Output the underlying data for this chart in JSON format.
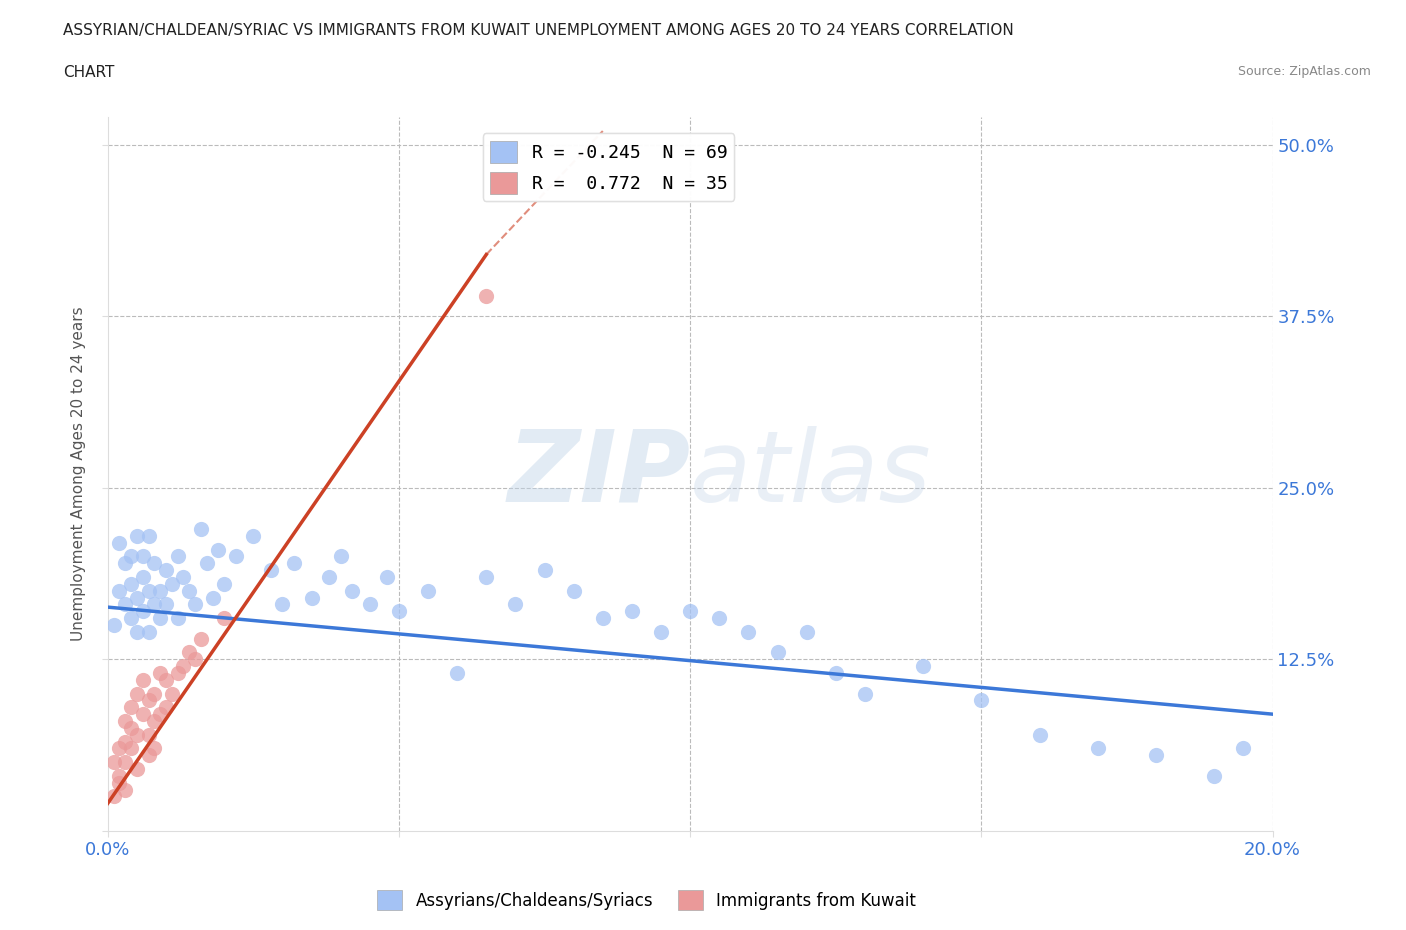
{
  "title_line1": "ASSYRIAN/CHALDEAN/SYRIAC VS IMMIGRANTS FROM KUWAIT UNEMPLOYMENT AMONG AGES 20 TO 24 YEARS CORRELATION",
  "title_line2": "CHART",
  "source": "Source: ZipAtlas.com",
  "ylabel": "Unemployment Among Ages 20 to 24 years",
  "xlim": [
    0.0,
    0.2
  ],
  "ylim": [
    0.0,
    0.52
  ],
  "blue_color": "#a4c2f4",
  "pink_color": "#ea9999",
  "blue_line_color": "#3c78d8",
  "pink_line_color": "#cc4125",
  "legend_blue_label": "R = -0.245  N = 69",
  "legend_pink_label": "R =  0.772  N = 35",
  "legend_bottom_blue": "Assyrians/Chaldeans/Syriacs",
  "legend_bottom_pink": "Immigrants from Kuwait",
  "watermark_zip": "ZIP",
  "watermark_atlas": "atlas",
  "background_color": "#ffffff",
  "grid_color": "#bbbbbb",
  "tick_color": "#3c78d8",
  "title_color": "#222222",
  "blue_x": [
    0.001,
    0.002,
    0.002,
    0.003,
    0.003,
    0.004,
    0.004,
    0.004,
    0.005,
    0.005,
    0.005,
    0.006,
    0.006,
    0.006,
    0.007,
    0.007,
    0.007,
    0.008,
    0.008,
    0.009,
    0.009,
    0.01,
    0.01,
    0.011,
    0.012,
    0.012,
    0.013,
    0.014,
    0.015,
    0.016,
    0.017,
    0.018,
    0.019,
    0.02,
    0.022,
    0.025,
    0.028,
    0.03,
    0.032,
    0.035,
    0.038,
    0.04,
    0.042,
    0.045,
    0.048,
    0.05,
    0.055,
    0.06,
    0.065,
    0.07,
    0.075,
    0.08,
    0.085,
    0.09,
    0.095,
    0.1,
    0.105,
    0.11,
    0.115,
    0.12,
    0.125,
    0.13,
    0.14,
    0.15,
    0.16,
    0.17,
    0.18,
    0.19,
    0.195
  ],
  "blue_y": [
    0.15,
    0.21,
    0.175,
    0.195,
    0.165,
    0.2,
    0.18,
    0.155,
    0.215,
    0.17,
    0.145,
    0.185,
    0.16,
    0.2,
    0.175,
    0.145,
    0.215,
    0.165,
    0.195,
    0.175,
    0.155,
    0.19,
    0.165,
    0.18,
    0.2,
    0.155,
    0.185,
    0.175,
    0.165,
    0.22,
    0.195,
    0.17,
    0.205,
    0.18,
    0.2,
    0.215,
    0.19,
    0.165,
    0.195,
    0.17,
    0.185,
    0.2,
    0.175,
    0.165,
    0.185,
    0.16,
    0.175,
    0.115,
    0.185,
    0.165,
    0.19,
    0.175,
    0.155,
    0.16,
    0.145,
    0.16,
    0.155,
    0.145,
    0.13,
    0.145,
    0.115,
    0.1,
    0.12,
    0.095,
    0.07,
    0.06,
    0.055,
    0.04,
    0.06
  ],
  "pink_x": [
    0.001,
    0.001,
    0.002,
    0.002,
    0.002,
    0.003,
    0.003,
    0.003,
    0.003,
    0.004,
    0.004,
    0.004,
    0.005,
    0.005,
    0.005,
    0.006,
    0.006,
    0.007,
    0.007,
    0.007,
    0.008,
    0.008,
    0.008,
    0.009,
    0.009,
    0.01,
    0.01,
    0.011,
    0.012,
    0.013,
    0.014,
    0.015,
    0.016,
    0.02,
    0.065
  ],
  "pink_y": [
    0.05,
    0.025,
    0.04,
    0.06,
    0.035,
    0.065,
    0.08,
    0.05,
    0.03,
    0.075,
    0.09,
    0.06,
    0.07,
    0.1,
    0.045,
    0.085,
    0.11,
    0.095,
    0.07,
    0.055,
    0.1,
    0.08,
    0.06,
    0.115,
    0.085,
    0.11,
    0.09,
    0.1,
    0.115,
    0.12,
    0.13,
    0.125,
    0.14,
    0.155,
    0.39
  ]
}
